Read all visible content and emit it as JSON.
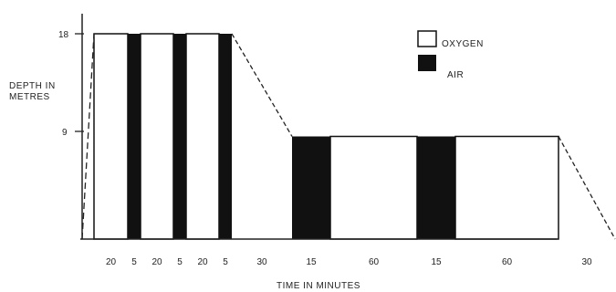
{
  "chart_data": {
    "type": "bar",
    "title": "",
    "xlabel": "TIME IN MINUTES",
    "ylabel_lines": [
      "DEPTH IN",
      "METRES"
    ],
    "y_ticks": [
      "18",
      "9"
    ],
    "legend": [
      {
        "label": "OXYGEN",
        "color": "#ffffff"
      },
      {
        "label": "AIR",
        "color": "#111111"
      }
    ],
    "segments": [
      {
        "minutes": 20,
        "depth": 18,
        "gas": "OXYGEN",
        "label": "20"
      },
      {
        "minutes": 5,
        "depth": 18,
        "gas": "AIR",
        "label": "5"
      },
      {
        "minutes": 20,
        "depth": 18,
        "gas": "OXYGEN",
        "label": "20"
      },
      {
        "minutes": 5,
        "depth": 18,
        "gas": "AIR",
        "label": "5"
      },
      {
        "minutes": 20,
        "depth": 18,
        "gas": "OXYGEN",
        "label": "20"
      },
      {
        "minutes": 5,
        "depth": 18,
        "gas": "AIR",
        "label": "5"
      },
      {
        "minutes": 30,
        "depth_from": 18,
        "depth_to": 9,
        "gas": "ascent",
        "label": "30"
      },
      {
        "minutes": 15,
        "depth": 9,
        "gas": "AIR",
        "label": "15"
      },
      {
        "minutes": 60,
        "depth": 9,
        "gas": "OXYGEN",
        "label": "60"
      },
      {
        "minutes": 15,
        "depth": 9,
        "gas": "AIR",
        "label": "15"
      },
      {
        "minutes": 60,
        "depth": 9,
        "gas": "OXYGEN",
        "label": "60"
      },
      {
        "minutes": 30,
        "depth_from": 9,
        "depth_to": 0,
        "gas": "ascent",
        "label": "30"
      }
    ]
  }
}
